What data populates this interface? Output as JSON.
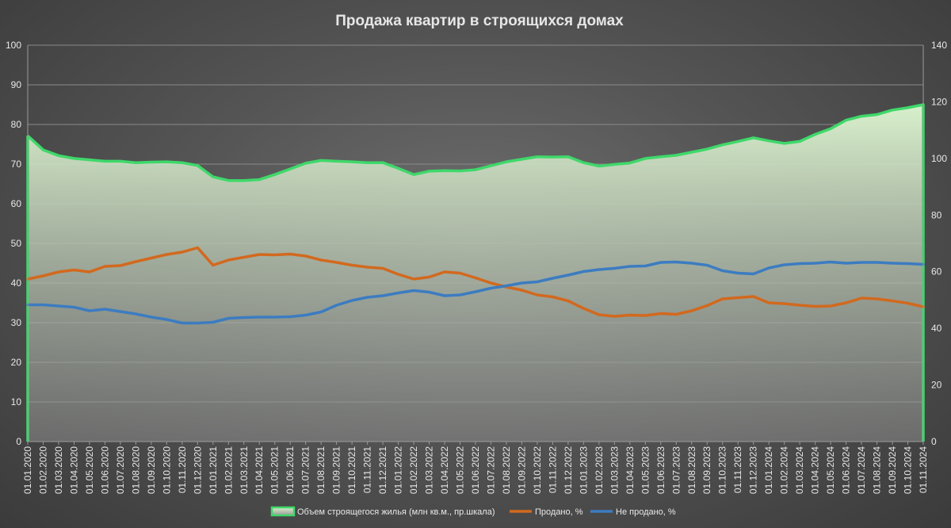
{
  "chart_data": {
    "type": "line",
    "title": "Продажа квартир в строящихся домах",
    "categories": [
      "01.01.2020",
      "01.02.2020",
      "01.03.2020",
      "01.04.2020",
      "01.05.2020",
      "01.06.2020",
      "01.07.2020",
      "01.08.2020",
      "01.09.2020",
      "01.10.2020",
      "01.11.2020",
      "01.12.2020",
      "01.01.2021",
      "01.02.2021",
      "01.03.2021",
      "01.04.2021",
      "01.05.2021",
      "01.06.2021",
      "01.07.2021",
      "01.08.2021",
      "01.09.2021",
      "01.10.2021",
      "01.11.2021",
      "01.12.2021",
      "01.01.2022",
      "01.02.2022",
      "01.03.2022",
      "01.04.2022",
      "01.05.2022",
      "01.06.2022",
      "01.07.2022",
      "01.08.2022",
      "01.09.2022",
      "01.10.2022",
      "01.11.2022",
      "01.12.2022",
      "01.01.2023",
      "01.02.2023",
      "01.03.2023",
      "01.04.2023",
      "01.05.2023",
      "01.06.2023",
      "01.07.2023",
      "01.08.2023",
      "01.09.2023",
      "01.10.2023",
      "01.11.2023",
      "01.12.2023",
      "01.01.2024",
      "01.02.2024",
      "01.03.2024",
      "01.04.2024",
      "01.05.2024",
      "01.06.2024",
      "01.07.2024",
      "01.08.2024",
      "01.09.2024",
      "01.10.2024",
      "01.11.2024"
    ],
    "y_left": {
      "min": 0,
      "max": 100,
      "step": 10
    },
    "y_right": {
      "min": 0,
      "max": 140,
      "step": 20
    },
    "grid": true,
    "legend_position": "bottom",
    "series": [
      {
        "name": "Объем строящегося жилья (млн кв.м., пр.шкала)",
        "axis": "right",
        "style": "area",
        "color": "#3fd86a",
        "fill_top": "#d8f0cc",
        "fill_bottom": "#8c8c8c",
        "values": [
          108,
          103,
          101,
          100,
          99.5,
          99,
          99,
          98.5,
          98.7,
          98.8,
          98.5,
          97.5,
          93.5,
          92.2,
          92.2,
          92.5,
          94.3,
          96.3,
          98.3,
          99.3,
          99,
          98.8,
          98.5,
          98.5,
          96.5,
          94.3,
          95.5,
          95.7,
          95.6,
          96,
          97.4,
          98.8,
          99.7,
          100.6,
          100.5,
          100.6,
          98.5,
          97.3,
          97.9,
          98.4,
          100,
          100.6,
          101.1,
          102.2,
          103.3,
          104.8,
          106,
          107.3,
          106.2,
          105.3,
          106,
          108.5,
          110.5,
          113.5,
          114.9,
          115.5,
          117.1,
          117.9,
          119
        ]
      },
      {
        "name": "Продано, %",
        "axis": "left",
        "style": "line",
        "color": "#d2691e",
        "values": [
          41,
          41.8,
          42.8,
          43.3,
          42.8,
          44.2,
          44.4,
          45.4,
          46.3,
          47.2,
          47.8,
          48.9,
          44.5,
          45.8,
          46.5,
          47.2,
          47.1,
          47.3,
          46.8,
          45.8,
          45.2,
          44.5,
          44,
          43.7,
          42.2,
          41,
          41.5,
          42.8,
          42.5,
          41.3,
          40,
          39,
          38.2,
          37,
          36.5,
          35.5,
          33.6,
          32,
          31.6,
          31.9,
          31.8,
          32.3,
          32.1,
          33,
          34.3,
          36,
          36.3,
          36.6,
          35,
          34.8,
          34.4,
          34.1,
          34.2,
          35,
          36.2,
          36,
          35.5,
          34.9,
          34
        ]
      },
      {
        "name": "Не продано, %",
        "axis": "left",
        "style": "line",
        "color": "#3c7cc1",
        "values": [
          34.5,
          34.5,
          34.2,
          33.9,
          33,
          33.4,
          32.8,
          32.2,
          31.4,
          30.8,
          29.9,
          29.9,
          30.1,
          31.1,
          31.3,
          31.4,
          31.4,
          31.5,
          31.9,
          32.7,
          34.4,
          35.6,
          36.4,
          36.8,
          37.5,
          38.1,
          37.7,
          36.8,
          37,
          37.8,
          38.7,
          39.3,
          40,
          40.3,
          41.2,
          42,
          42.9,
          43.4,
          43.7,
          44.2,
          44.3,
          45.2,
          45.3,
          45,
          44.5,
          43.1,
          42.5,
          42.3,
          43.8,
          44.6,
          44.9,
          45,
          45.3,
          45,
          45.2,
          45.2,
          45,
          44.9,
          44.7
        ]
      }
    ]
  }
}
